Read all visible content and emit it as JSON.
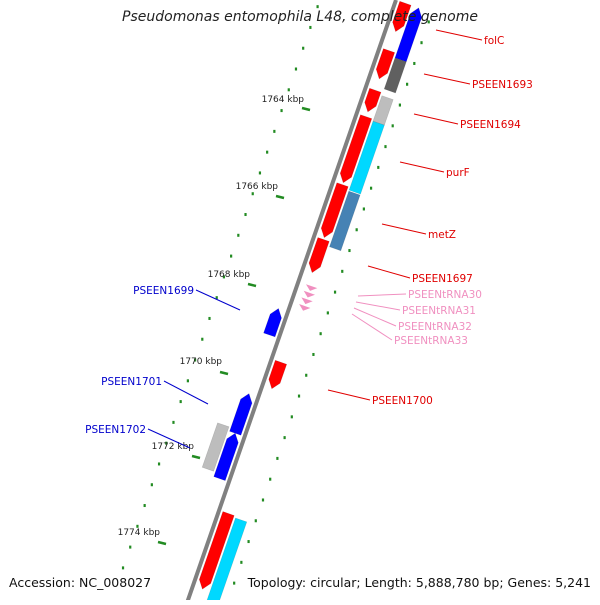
{
  "title": "Pseudomonas entomophila L48, complete genome",
  "footer": {
    "accession": "Accession: NC_008027",
    "summary": "Topology: circular; Length: 5,888,780 bp; Genes: 5,241"
  },
  "ticks": [
    {
      "label": "1764 kbp"
    },
    {
      "label": "1766 kbp"
    },
    {
      "label": "1768 kbp"
    },
    {
      "label": "1770 kbp"
    },
    {
      "label": "1772 kbp"
    },
    {
      "label": "1774 kbp"
    }
  ],
  "gene_labels": [
    {
      "label": "folC",
      "color": "#e00000"
    },
    {
      "label": "PSEEN1693",
      "color": "#e00000"
    },
    {
      "label": "PSEEN1694",
      "color": "#e00000"
    },
    {
      "label": "purF",
      "color": "#e00000"
    },
    {
      "label": "metZ",
      "color": "#e00000"
    },
    {
      "label": "PSEEN1697",
      "color": "#e00000"
    },
    {
      "label": "PSEENtRNA30",
      "color": "#f090c0"
    },
    {
      "label": "PSEENtRNA31",
      "color": "#f090c0"
    },
    {
      "label": "PSEENtRNA32",
      "color": "#f090c0"
    },
    {
      "label": "PSEENtRNA33",
      "color": "#f090c0"
    },
    {
      "label": "PSEEN1700",
      "color": "#e00000"
    },
    {
      "label": "PSEEN1699",
      "color": "#0000cc"
    },
    {
      "label": "PSEEN1701",
      "color": "#0000cc"
    },
    {
      "label": "PSEEN1702",
      "color": "#0000cc"
    }
  ],
  "colors": {
    "backbone": "#808080",
    "forward_cds": "#ff0000",
    "reverse_cds": "#0000ff",
    "trna": "#f090c0",
    "gc_skew": "#228b22",
    "cog_cyan": "#00d8ff",
    "cog_steel": "#4682b4",
    "cog_gray": "#bdbdbd",
    "cog_dark": "#606060"
  }
}
